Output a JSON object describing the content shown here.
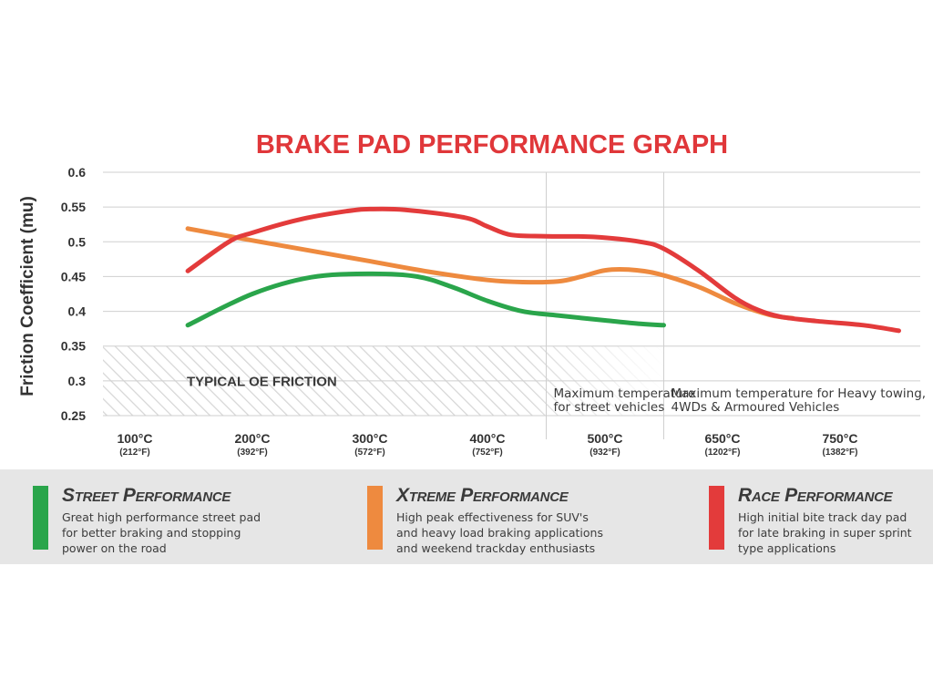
{
  "chart_data": {
    "type": "line",
    "title": "BRAKE PAD PERFORMANCE GRAPH",
    "ylabel": "Friction Coefficient (mu)",
    "ylim": [
      0.25,
      0.6
    ],
    "yticks": [
      "0.6",
      "0.55",
      "0.5",
      "0.45",
      "0.4",
      "0.35",
      "0.3",
      "0.25"
    ],
    "x_categories": [
      {
        "c": "100°C",
        "f": "(212°F)"
      },
      {
        "c": "200°C",
        "f": "(392°F)"
      },
      {
        "c": "300°C",
        "f": "(572°F)"
      },
      {
        "c": "400°C",
        "f": "(752°F)"
      },
      {
        "c": "500°C",
        "f": "(932°F)"
      },
      {
        "c": "650°C",
        "f": "(1202°F)"
      },
      {
        "c": "750°C",
        "f": "(1382°F)"
      }
    ],
    "grid": true,
    "shaded_band": {
      "label": "TYPICAL OE FRICTION",
      "y_range": [
        0.25,
        0.35
      ]
    },
    "annotations": [
      {
        "text": "Maximum temperature\nfor street vehicles",
        "divider_after_index": 3.5
      },
      {
        "text": "Maximum temperature for Heavy towing,\n4WDs & Armoured Vehicles",
        "divider_after_index": 4.5
      }
    ],
    "series": [
      {
        "name": "Street Performance",
        "color": "#2aa54b",
        "points": [
          [
            0.45,
            0.38
          ],
          [
            1.0,
            0.425
          ],
          [
            1.5,
            0.449
          ],
          [
            2.0,
            0.454
          ],
          [
            2.4,
            0.45
          ],
          [
            2.7,
            0.435
          ],
          [
            3.0,
            0.415
          ],
          [
            3.3,
            0.4
          ],
          [
            3.6,
            0.394
          ],
          [
            4.0,
            0.387
          ],
          [
            4.3,
            0.382
          ],
          [
            4.5,
            0.38
          ]
        ]
      },
      {
        "name": "Xtreme Performance",
        "color": "#ee8a3f",
        "points": [
          [
            0.45,
            0.519
          ],
          [
            1.0,
            0.502
          ],
          [
            1.5,
            0.487
          ],
          [
            2.0,
            0.472
          ],
          [
            2.5,
            0.457
          ],
          [
            3.0,
            0.445
          ],
          [
            3.3,
            0.442
          ],
          [
            3.6,
            0.443
          ],
          [
            3.8,
            0.45
          ],
          [
            4.0,
            0.459
          ],
          [
            4.2,
            0.46
          ],
          [
            4.45,
            0.454
          ],
          [
            4.8,
            0.435
          ],
          [
            5.1,
            0.412
          ],
          [
            5.4,
            0.395
          ],
          [
            5.6,
            0.39
          ]
        ]
      },
      {
        "name": "Race Performance",
        "color": "#e33b3b",
        "points": [
          [
            0.45,
            0.458
          ],
          [
            0.8,
            0.5
          ],
          [
            1.0,
            0.513
          ],
          [
            1.4,
            0.532
          ],
          [
            1.8,
            0.544
          ],
          [
            2.0,
            0.547
          ],
          [
            2.3,
            0.546
          ],
          [
            2.8,
            0.535
          ],
          [
            3.0,
            0.522
          ],
          [
            3.2,
            0.51
          ],
          [
            3.5,
            0.508
          ],
          [
            3.9,
            0.507
          ],
          [
            4.3,
            0.5
          ],
          [
            4.5,
            0.49
          ],
          [
            4.8,
            0.458
          ],
          [
            5.1,
            0.42
          ],
          [
            5.3,
            0.402
          ],
          [
            5.5,
            0.392
          ],
          [
            5.8,
            0.386
          ],
          [
            6.2,
            0.38
          ],
          [
            6.5,
            0.372
          ]
        ]
      }
    ]
  },
  "legend": [
    {
      "title": "Street Performance",
      "desc": "Great high performance street pad\nfor better braking and stopping\npower on the road",
      "color": "#2aa54b"
    },
    {
      "title": "Xtreme Performance",
      "desc": "High peak effectiveness for SUV's\nand heavy load braking applications\nand weekend trackday enthusiasts",
      "color": "#ee8a3f"
    },
    {
      "title": "Race Performance",
      "desc": "High initial bite track day pad\nfor late braking in super sprint\ntype applications",
      "color": "#e33b3b"
    }
  ]
}
